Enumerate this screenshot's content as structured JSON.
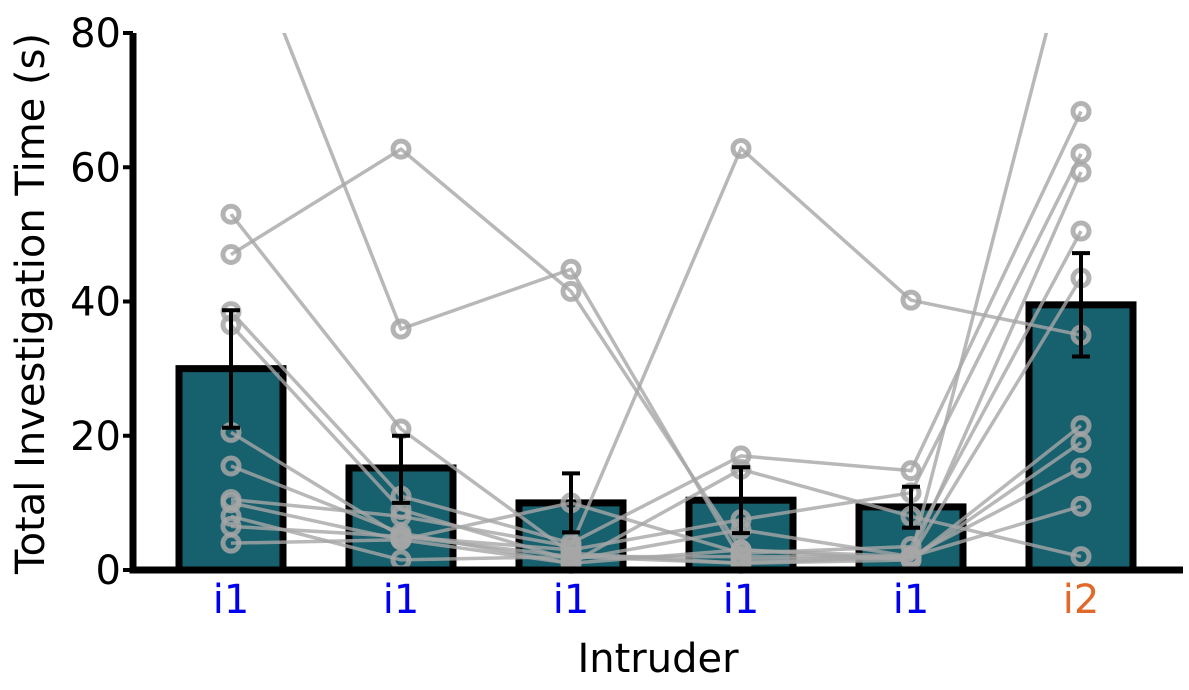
{
  "chart_data": {
    "type": "bar",
    "title": "",
    "xlabel": "Intruder",
    "ylabel": "Total Investigation Time (s)",
    "ylim": [
      0,
      80
    ],
    "yticks": [
      0,
      20,
      40,
      60,
      80
    ],
    "grid": false,
    "categories": [
      "i1",
      "i1",
      "i1",
      "i1",
      "i1",
      "i2"
    ],
    "category_colors": [
      "#0000ee",
      "#0000ee",
      "#0000ee",
      "#0000ee",
      "#0000ee",
      "#e06a2c"
    ],
    "bar_color": "#17606e",
    "bar_edge_color": "#000000",
    "line_color": "#a6a6a6",
    "values": [
      30,
      15.2,
      10,
      10.4,
      9.4,
      39.5
    ],
    "error": [
      [
        21.2,
        38.7
      ],
      [
        10,
        20
      ],
      [
        5.6,
        14.4
      ],
      [
        5.5,
        15.3
      ],
      [
        6.3,
        12.4
      ],
      [
        31.8,
        47.2
      ]
    ],
    "subjects": [
      [
        53,
        21,
        2.5,
        1,
        1.5,
        21.5
      ],
      [
        47,
        62.7,
        41.5,
        3,
        1.5,
        19
      ],
      [
        38.5,
        11,
        4,
        17,
        14.8,
        68.3
      ],
      [
        36.5,
        9,
        1.5,
        6,
        2,
        59.3
      ],
      [
        20.5,
        5,
        2,
        2,
        2,
        9.5
      ],
      [
        15.5,
        5.5,
        1,
        3,
        2,
        43.5
      ],
      [
        10.5,
        8,
        3.5,
        62.8,
        40.2,
        35
      ],
      [
        10,
        4.5,
        10,
        2.5,
        3.5,
        50.5
      ],
      [
        8,
        1.5,
        2,
        1,
        2,
        15.2
      ],
      [
        6.5,
        5,
        3,
        7.5,
        11.5,
        62
      ],
      [
        4,
        4.5,
        1,
        15,
        8,
        2
      ],
      [
        100,
        35.9,
        44.8,
        1.5,
        2,
        100
      ]
    ]
  }
}
